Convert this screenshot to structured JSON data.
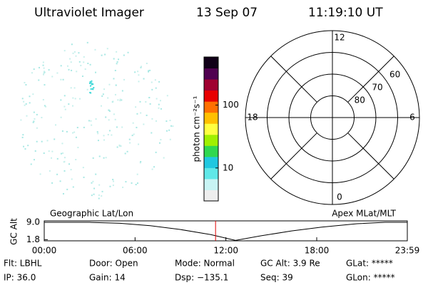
{
  "header": {
    "title": "Ultraviolet Imager",
    "date": "13 Sep 07",
    "time": "11:19:10 UT"
  },
  "chart_data": [
    {
      "type": "colorbar",
      "label": "photon cm⁻²s⁻¹",
      "log_scale": true,
      "zlim": [
        3,
        580
      ],
      "zticks": [
        10,
        100
      ],
      "colors": [
        "#eeeeee",
        "#c8f4f4",
        "#60e8e8",
        "#20c8e0",
        "#30d850",
        "#a0f000",
        "#ffff40",
        "#ffc000",
        "#ff7000",
        "#e80000",
        "#a00030",
        "#500050",
        "#100018"
      ]
    },
    {
      "type": "polar",
      "rlim": [
        90,
        50
      ],
      "rticks": [
        80,
        70,
        60
      ],
      "thetaticks": [
        12,
        18,
        6,
        0
      ],
      "color": "#000000"
    },
    {
      "type": "line",
      "ylabel": "GC Alt",
      "xlim": [
        0,
        1439
      ],
      "ylim": [
        1.3,
        9.6
      ],
      "xticks": [
        {
          "value": 0,
          "label": "00:00"
        },
        {
          "value": 360,
          "label": "06:00"
        },
        {
          "value": 720,
          "label": "12:00"
        },
        {
          "value": 1080,
          "label": "18:00"
        },
        {
          "value": 1439,
          "label": "23:59"
        }
      ],
      "yticks": [
        {
          "value": 9,
          "label": "9.0"
        },
        1.8
      ],
      "annotations": [
        "Geographic Lat/Lon",
        "Apex MLat/MLT"
      ],
      "x": [
        0,
        180,
        300,
        420,
        540,
        660,
        758,
        860,
        980,
        1100,
        1240,
        1351,
        1439
      ],
      "series": [
        {
          "color": "#000000",
          "values": [
            9.0,
            9.0,
            8.6,
            7.6,
            6.0,
            3.9,
            1.5,
            3.4,
            5.4,
            7.0,
            8.4,
            9.0,
            9.0
          ]
        }
      ],
      "marker": {
        "x": 679,
        "color": "#e00000"
      }
    }
  ],
  "footer": {
    "items": [
      "Flt: LBHL",
      "IP: 36.0",
      "Door: Open",
      "Gain: 14",
      "Mode: Normal",
      "Dsp: −135.1",
      "GC Alt: 3.9 Re",
      "Seq: 39",
      "GLat: *****",
      "GLon: *****"
    ]
  }
}
